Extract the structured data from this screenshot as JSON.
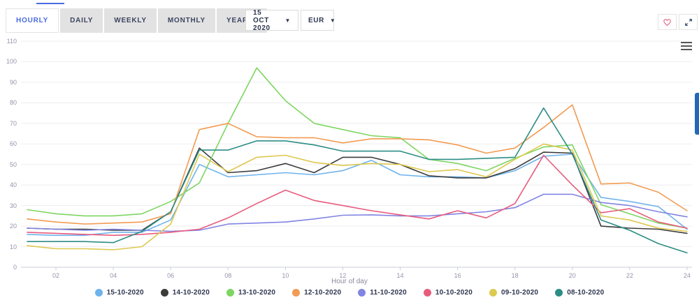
{
  "toolbar": {
    "tabs": [
      {
        "label": "HOURLY",
        "active": true
      },
      {
        "label": "DAILY",
        "active": false
      },
      {
        "label": "WEEKLY",
        "active": false
      },
      {
        "label": "MONTHLY",
        "active": false
      },
      {
        "label": "YEARLY",
        "active": false
      }
    ],
    "date_selector": {
      "value": "15 OCT 2020",
      "caret": "▼"
    },
    "currency_selector": {
      "value": "EUR",
      "caret": "▼"
    },
    "accent_color": "#4a6be0",
    "favorite_icon": "heart-outline",
    "fullscreen_icon": "expand-arrows",
    "menu_icon": "hamburger"
  },
  "chart_data": {
    "type": "line",
    "title": "",
    "xlabel": "Hour of day",
    "ylabel": "",
    "xlim": [
      1,
      24
    ],
    "ylim": [
      0,
      110
    ],
    "grid": "horizontal",
    "legend_position": "bottom",
    "x_hours": [
      1,
      2,
      3,
      4,
      5,
      6,
      7,
      8,
      9,
      10,
      11,
      12,
      13,
      14,
      15,
      16,
      17,
      18,
      19,
      20,
      21,
      22,
      23,
      24
    ],
    "xticks": [
      {
        "value": 2,
        "label": "02"
      },
      {
        "value": 4,
        "label": "04"
      },
      {
        "value": 6,
        "label": "06"
      },
      {
        "value": 8,
        "label": "08"
      },
      {
        "value": 10,
        "label": "10"
      },
      {
        "value": 12,
        "label": "12"
      },
      {
        "value": 14,
        "label": "14"
      },
      {
        "value": 16,
        "label": "16"
      },
      {
        "value": 18,
        "label": "18"
      },
      {
        "value": 20,
        "label": "20"
      },
      {
        "value": 22,
        "label": "22"
      },
      {
        "value": 24,
        "label": "24"
      }
    ],
    "yticks": [
      0,
      10,
      20,
      30,
      40,
      50,
      60,
      70,
      80,
      90,
      100,
      110
    ],
    "series": [
      {
        "name": "15-10-2020",
        "color": "#6fb3ec",
        "values": [
          16,
          15.5,
          15.5,
          17,
          17,
          23,
          50,
          44,
          45,
          46,
          45,
          47,
          52,
          45,
          44,
          44,
          43.5,
          47,
          54,
          55,
          34,
          32,
          29.5,
          18.5
        ]
      },
      {
        "name": "14-10-2020",
        "color": "#3b3b3b",
        "values": [
          19,
          18.5,
          18.5,
          18,
          18,
          27,
          58,
          46,
          47,
          50.5,
          46,
          53.5,
          53.5,
          50,
          44.5,
          43.5,
          43.5,
          48,
          56,
          55.5,
          20,
          19,
          18.5,
          16.5
        ]
      },
      {
        "name": "13-10-2020",
        "color": "#7ed661",
        "values": [
          28,
          26,
          25,
          25,
          26,
          32,
          41,
          70,
          97,
          81,
          70,
          67,
          64,
          63,
          52.5,
          50.5,
          47,
          53,
          58.5,
          59.5,
          30.5,
          26,
          21.5,
          19
        ]
      },
      {
        "name": "12-10-2020",
        "color": "#f29b52",
        "values": [
          23.5,
          22,
          21,
          21.5,
          22,
          26,
          67,
          70,
          63.5,
          63,
          63,
          60.5,
          62.5,
          62.5,
          62,
          59.5,
          55.5,
          58,
          68,
          79,
          40.5,
          41,
          36.5,
          27.5
        ]
      },
      {
        "name": "11-10-2020",
        "color": "#8184e3",
        "values": [
          19,
          18.5,
          18,
          18.5,
          18,
          17.5,
          18,
          21,
          21.5,
          22,
          23.5,
          25.3,
          25.5,
          25,
          25,
          26,
          27,
          29,
          35.5,
          35.5,
          31.5,
          30,
          27,
          24.5
        ]
      },
      {
        "name": "10-10-2020",
        "color": "#e85b7d",
        "values": [
          17,
          16.5,
          16,
          15.5,
          16,
          17,
          18.5,
          24,
          31,
          37.5,
          32.5,
          30,
          27.5,
          25.5,
          23.5,
          27.5,
          24,
          31,
          54.5,
          40,
          26.5,
          28.5,
          22,
          19
        ]
      },
      {
        "name": "09-10-2020",
        "color": "#ddc94f",
        "values": [
          10.5,
          9,
          9,
          8.5,
          10,
          21,
          55,
          46.5,
          53.5,
          54.5,
          51,
          49.5,
          50.5,
          50,
          46.5,
          47.5,
          44,
          52.5,
          60,
          57,
          25,
          23,
          19,
          17.5
        ]
      },
      {
        "name": "08-10-2020",
        "color": "#2d8d85",
        "values": [
          12.5,
          12.5,
          12.5,
          12,
          17.5,
          27,
          57,
          57,
          61.5,
          61.5,
          59.5,
          56.5,
          56.5,
          56.5,
          52.5,
          52.5,
          53,
          53.5,
          77.5,
          55,
          23,
          18,
          11.5,
          7
        ]
      }
    ]
  }
}
